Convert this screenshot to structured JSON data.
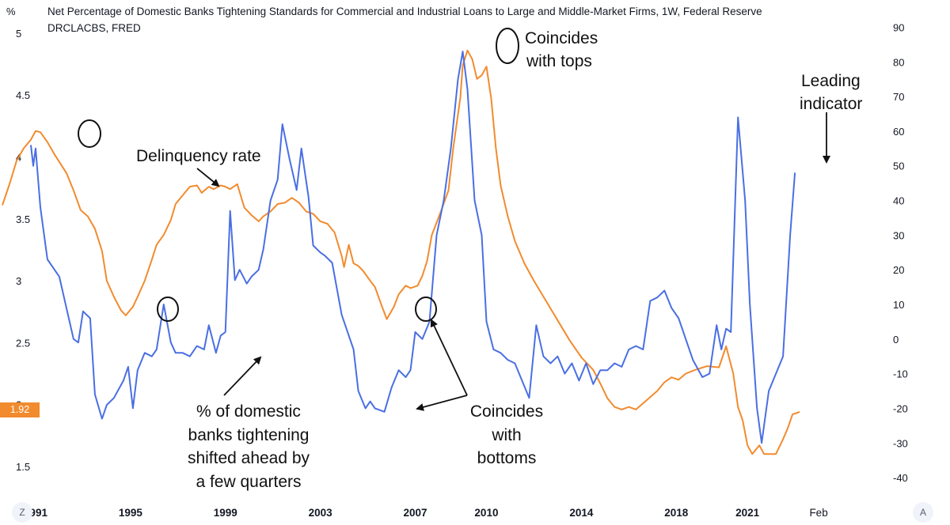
{
  "header": {
    "title": "Net Percentage of Domestic Banks Tightening Standards for Commercial and Industrial Loans to Large and Middle-Market Firms, 1W, Federal Reserve",
    "source": "DRCLACBS, FRED",
    "left_unit": "%",
    "price_tag": "1.92"
  },
  "controls": {
    "left_button": "Z",
    "right_button": "A"
  },
  "colors": {
    "delinquency": "#f28b2e",
    "tightening": "#4a6fe3",
    "price_tag": "#f28b2e"
  },
  "chart_data": {
    "type": "line",
    "title": "Net Percentage of Domestic Banks Tightening Standards for Commercial and Industrial Loans to Large and Middle-Market Firms, 1W, Federal Reserve",
    "left_axis": {
      "ticks": [
        "5",
        "4.5",
        "4",
        "3.5",
        "3",
        "2.5",
        "2",
        "1.5"
      ],
      "values": [
        5,
        4.5,
        4,
        3.5,
        3,
        2.5,
        2,
        1.5
      ],
      "range": [
        1.18,
        5.14
      ]
    },
    "right_axis": {
      "ticks": [
        "90",
        "80",
        "70",
        "60",
        "50",
        "40",
        "30",
        "20",
        "10",
        "0",
        "-10",
        "-20",
        "-30",
        "-40"
      ],
      "values": [
        90,
        80,
        70,
        60,
        50,
        40,
        30,
        20,
        10,
        0,
        -10,
        -20,
        -30,
        -40
      ],
      "range": [
        -48.2,
        93.3
      ]
    },
    "x_axis": {
      "ticks": [
        "1991",
        "1995",
        "1999",
        "2003",
        "2007",
        "2010",
        "2014",
        "2018",
        "2021",
        "Feb"
      ],
      "tick_years": [
        1991,
        1995,
        1999,
        2003,
        2007,
        2010,
        2014,
        2018,
        2021,
        2024
      ],
      "range": [
        1989.5,
        2027.2
      ]
    },
    "grid": false,
    "series": [
      {
        "axis": "left",
        "points": [
          [
            1989.6,
            3.61
          ],
          [
            1989.9,
            3.78
          ],
          [
            1990.2,
            3.97
          ],
          [
            1990.5,
            4.07
          ],
          [
            1990.8,
            4.14
          ],
          [
            1991.0,
            4.21
          ],
          [
            1991.2,
            4.2
          ],
          [
            1991.5,
            4.12
          ],
          [
            1991.8,
            4.02
          ],
          [
            1992.0,
            3.96
          ],
          [
            1992.3,
            3.87
          ],
          [
            1992.6,
            3.73
          ],
          [
            1992.9,
            3.57
          ],
          [
            1993.2,
            3.52
          ],
          [
            1993.5,
            3.42
          ],
          [
            1993.8,
            3.24
          ],
          [
            1994.0,
            3.0
          ],
          [
            1994.3,
            2.87
          ],
          [
            1994.6,
            2.76
          ],
          [
            1994.8,
            2.72
          ],
          [
            1995.1,
            2.79
          ],
          [
            1995.3,
            2.87
          ],
          [
            1995.6,
            3.0
          ],
          [
            1995.9,
            3.17
          ],
          [
            1996.1,
            3.29
          ],
          [
            1996.4,
            3.37
          ],
          [
            1996.7,
            3.49
          ],
          [
            1996.9,
            3.62
          ],
          [
            1997.2,
            3.69
          ],
          [
            1997.5,
            3.76
          ],
          [
            1997.8,
            3.77
          ],
          [
            1998.0,
            3.71
          ],
          [
            1998.3,
            3.76
          ],
          [
            1998.5,
            3.74
          ],
          [
            1998.8,
            3.77
          ],
          [
            1999.0,
            3.76
          ],
          [
            1999.2,
            3.74
          ],
          [
            1999.5,
            3.78
          ],
          [
            1999.8,
            3.59
          ],
          [
            2000.1,
            3.53
          ],
          [
            2000.4,
            3.48
          ],
          [
            2000.6,
            3.52
          ],
          [
            2000.9,
            3.56
          ],
          [
            2001.2,
            3.62
          ],
          [
            2001.5,
            3.63
          ],
          [
            2001.8,
            3.67
          ],
          [
            2002.1,
            3.63
          ],
          [
            2002.4,
            3.56
          ],
          [
            2002.7,
            3.54
          ],
          [
            2003.0,
            3.48
          ],
          [
            2003.3,
            3.46
          ],
          [
            2003.6,
            3.39
          ],
          [
            2003.9,
            3.2
          ],
          [
            2004.0,
            3.11
          ],
          [
            2004.2,
            3.29
          ],
          [
            2004.4,
            3.14
          ],
          [
            2004.6,
            3.12
          ],
          [
            2004.8,
            3.08
          ],
          [
            2005.1,
            3.0
          ],
          [
            2005.3,
            2.95
          ],
          [
            2005.6,
            2.79
          ],
          [
            2005.8,
            2.69
          ],
          [
            2006.1,
            2.79
          ],
          [
            2006.3,
            2.89
          ],
          [
            2006.6,
            2.96
          ],
          [
            2006.8,
            2.94
          ],
          [
            2007.1,
            2.96
          ],
          [
            2007.3,
            3.04
          ],
          [
            2007.5,
            3.16
          ],
          [
            2007.7,
            3.37
          ],
          [
            2007.9,
            3.47
          ],
          [
            2008.1,
            3.57
          ],
          [
            2008.4,
            3.73
          ],
          [
            2008.6,
            4.07
          ],
          [
            2008.9,
            4.48
          ],
          [
            2009.0,
            4.74
          ],
          [
            2009.2,
            4.86
          ],
          [
            2009.4,
            4.79
          ],
          [
            2009.6,
            4.63
          ],
          [
            2009.8,
            4.66
          ],
          [
            2010.0,
            4.73
          ],
          [
            2010.2,
            4.47
          ],
          [
            2010.4,
            4.07
          ],
          [
            2010.6,
            3.77
          ],
          [
            2010.9,
            3.52
          ],
          [
            2011.2,
            3.32
          ],
          [
            2011.6,
            3.14
          ],
          [
            2012.0,
            3.0
          ],
          [
            2012.5,
            2.84
          ],
          [
            2013.0,
            2.68
          ],
          [
            2013.5,
            2.52
          ],
          [
            2014.0,
            2.38
          ],
          [
            2014.5,
            2.28
          ],
          [
            2014.8,
            2.17
          ],
          [
            2015.1,
            2.05
          ],
          [
            2015.4,
            1.98
          ],
          [
            2015.7,
            1.96
          ],
          [
            2016.0,
            1.98
          ],
          [
            2016.3,
            1.96
          ],
          [
            2016.6,
            2.01
          ],
          [
            2016.9,
            2.06
          ],
          [
            2017.2,
            2.11
          ],
          [
            2017.5,
            2.18
          ],
          [
            2017.8,
            2.22
          ],
          [
            2018.1,
            2.2
          ],
          [
            2018.4,
            2.25
          ],
          [
            2018.8,
            2.28
          ],
          [
            2019.3,
            2.31
          ],
          [
            2019.8,
            2.3
          ],
          [
            2020.1,
            2.47
          ],
          [
            2020.4,
            2.25
          ],
          [
            2020.6,
            1.98
          ],
          [
            2020.8,
            1.87
          ],
          [
            2021.0,
            1.67
          ],
          [
            2021.2,
            1.6
          ],
          [
            2021.5,
            1.67
          ],
          [
            2021.7,
            1.6
          ],
          [
            2021.9,
            1.6
          ],
          [
            2022.2,
            1.6
          ],
          [
            2022.5,
            1.72
          ],
          [
            2022.7,
            1.81
          ],
          [
            2022.9,
            1.92
          ],
          [
            2023.2,
            1.94
          ]
        ]
      },
      {
        "axis": "right",
        "points": [
          [
            1990.8,
            56
          ],
          [
            1990.9,
            50
          ],
          [
            1991.0,
            55
          ],
          [
            1991.2,
            38
          ],
          [
            1991.5,
            23
          ],
          [
            1991.8,
            20
          ],
          [
            1992.0,
            18
          ],
          [
            1992.3,
            9
          ],
          [
            1992.6,
            0
          ],
          [
            1992.8,
            -1
          ],
          [
            1993.0,
            8
          ],
          [
            1993.3,
            6
          ],
          [
            1993.5,
            -16
          ],
          [
            1993.8,
            -23
          ],
          [
            1994.0,
            -19
          ],
          [
            1994.3,
            -17
          ],
          [
            1994.7,
            -12
          ],
          [
            1994.9,
            -8
          ],
          [
            1995.1,
            -20
          ],
          [
            1995.3,
            -9
          ],
          [
            1995.6,
            -4
          ],
          [
            1995.9,
            -5
          ],
          [
            1996.1,
            -3
          ],
          [
            1996.4,
            10
          ],
          [
            1996.7,
            -1
          ],
          [
            1996.9,
            -4
          ],
          [
            1997.2,
            -4
          ],
          [
            1997.5,
            -5
          ],
          [
            1997.8,
            -2
          ],
          [
            1998.1,
            -3
          ],
          [
            1998.3,
            4
          ],
          [
            1998.6,
            -4
          ],
          [
            1998.8,
            1
          ],
          [
            1999.0,
            2
          ],
          [
            1999.2,
            37
          ],
          [
            1999.4,
            17
          ],
          [
            1999.6,
            20
          ],
          [
            1999.9,
            16
          ],
          [
            2000.1,
            18
          ],
          [
            2000.4,
            20
          ],
          [
            2000.6,
            26
          ],
          [
            2000.9,
            40
          ],
          [
            2001.2,
            46
          ],
          [
            2001.4,
            62
          ],
          [
            2001.7,
            52
          ],
          [
            2002.0,
            43
          ],
          [
            2002.2,
            55
          ],
          [
            2002.5,
            41
          ],
          [
            2002.7,
            27
          ],
          [
            2003.0,
            25
          ],
          [
            2003.2,
            24
          ],
          [
            2003.5,
            22
          ],
          [
            2003.9,
            7
          ],
          [
            2004.1,
            3
          ],
          [
            2004.4,
            -3
          ],
          [
            2004.6,
            -15
          ],
          [
            2004.9,
            -20
          ],
          [
            2005.1,
            -18
          ],
          [
            2005.3,
            -20
          ],
          [
            2005.7,
            -21
          ],
          [
            2006.0,
            -14
          ],
          [
            2006.3,
            -9
          ],
          [
            2006.6,
            -11
          ],
          [
            2006.8,
            -9
          ],
          [
            2007.0,
            2
          ],
          [
            2007.3,
            0
          ],
          [
            2007.6,
            5
          ],
          [
            2007.9,
            30
          ],
          [
            2008.2,
            40
          ],
          [
            2008.5,
            55
          ],
          [
            2008.8,
            75
          ],
          [
            2009.0,
            83
          ],
          [
            2009.2,
            72
          ],
          [
            2009.5,
            40
          ],
          [
            2009.8,
            30
          ],
          [
            2010.0,
            5
          ],
          [
            2010.3,
            -3
          ],
          [
            2010.6,
            -4
          ],
          [
            2010.9,
            -6
          ],
          [
            2011.2,
            -7
          ],
          [
            2011.5,
            -12
          ],
          [
            2011.8,
            -17
          ],
          [
            2012.1,
            4
          ],
          [
            2012.4,
            -5
          ],
          [
            2012.7,
            -7
          ],
          [
            2013.0,
            -5
          ],
          [
            2013.3,
            -10
          ],
          [
            2013.6,
            -7
          ],
          [
            2013.9,
            -12
          ],
          [
            2014.2,
            -7
          ],
          [
            2014.5,
            -13
          ],
          [
            2014.8,
            -9
          ],
          [
            2015.1,
            -9
          ],
          [
            2015.4,
            -7
          ],
          [
            2015.7,
            -8
          ],
          [
            2016.0,
            -3
          ],
          [
            2016.3,
            -2
          ],
          [
            2016.6,
            -3
          ],
          [
            2016.9,
            11
          ],
          [
            2017.2,
            12
          ],
          [
            2017.5,
            14
          ],
          [
            2017.8,
            9
          ],
          [
            2018.1,
            6
          ],
          [
            2018.4,
            0
          ],
          [
            2018.7,
            -6
          ],
          [
            2019.1,
            -11
          ],
          [
            2019.4,
            -10
          ],
          [
            2019.7,
            4
          ],
          [
            2019.9,
            -3
          ],
          [
            2020.1,
            3
          ],
          [
            2020.3,
            2
          ],
          [
            2020.6,
            64
          ],
          [
            2020.9,
            40
          ],
          [
            2021.1,
            10
          ],
          [
            2021.4,
            -20
          ],
          [
            2021.6,
            -30
          ],
          [
            2021.9,
            -15
          ],
          [
            2022.2,
            -10
          ],
          [
            2022.5,
            -5
          ],
          [
            2022.8,
            30
          ],
          [
            2023.0,
            48
          ]
        ]
      }
    ]
  },
  "annotations": {
    "delinquency": "Delinquency rate",
    "tops_1": "Coincides",
    "tops_2": "with tops",
    "leading_1": "Leading",
    "leading_2": "indicator",
    "tight_1": "% of domestic",
    "tight_2": "banks tightening",
    "tight_3": "shifted ahead by",
    "tight_4": "a few quarters",
    "bottoms_1": "Coincides",
    "bottoms_2": "with",
    "bottoms_3": "bottoms"
  }
}
